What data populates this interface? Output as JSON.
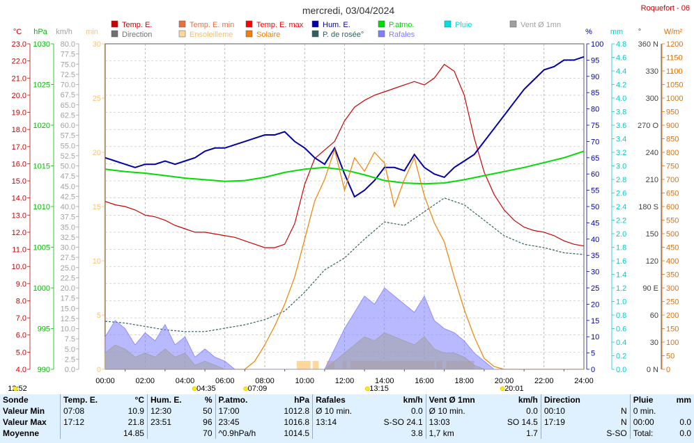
{
  "header": {
    "title": "mercredi, 03/04/2024",
    "station": "Roquefort - 06"
  },
  "colors": {
    "temp": "#cc0000",
    "temp_min": "#e87040",
    "temp_max": "#ff0000",
    "pluie": "#00e0e0",
    "vent": "#a0a0a0",
    "direction": "#707070",
    "ensoleillement": "#ffd79a",
    "solaire": "#f08000",
    "rosee": "#306060",
    "rafales": "#8080ff",
    "humidite": "#0000aa",
    "patmo": "#00dd00"
  },
  "legend": [
    {
      "label": "Temp. E.",
      "color": "#cc0000",
      "icon": "square"
    },
    {
      "label": "Temp. E. min",
      "color": "#e87040",
      "icon": "square"
    },
    {
      "label": "Temp. E. max",
      "color": "#ff0000",
      "icon": "square"
    },
    {
      "label": "Hum. E.",
      "color": "#0000aa",
      "icon": "square"
    },
    {
      "label": "P.atmo.",
      "color": "#00dd00",
      "icon": "square"
    },
    {
      "label": "Pluie",
      "color": "#00e0e0",
      "icon": "square"
    },
    {
      "label": "Vent Ø 1mn",
      "color": "#a0a0a0",
      "icon": "square"
    },
    {
      "label": "Direction",
      "color": "#707070",
      "icon": "square"
    },
    {
      "label": "Ensoleilleme",
      "color": "#ffd79a",
      "icon": "square"
    },
    {
      "label": "Solaire",
      "color": "#f08000",
      "icon": "square"
    },
    {
      "label": "P. de rosée°",
      "color": "#306060",
      "icon": "square"
    },
    {
      "label": "Rafales",
      "color": "#8080ff",
      "icon": "square"
    }
  ],
  "chart_data": {
    "type": "line",
    "x_axis": {
      "ticks": [
        "00:00",
        "02:00",
        "04:00",
        "06:00",
        "08:00",
        "10:00",
        "12:00",
        "14:00",
        "16:00",
        "18:00",
        "20:00",
        "22:00",
        "24:00"
      ],
      "range_hours": [
        0,
        24
      ]
    },
    "axes": {
      "temp_c": {
        "unit": "°C",
        "min": 4,
        "max": 23,
        "step": 1,
        "color": "#cc0000"
      },
      "patmo_hpa": {
        "unit": "hPa",
        "min": 990,
        "max": 1030,
        "step": 5,
        "color": "#00bb00"
      },
      "wind_kmh": {
        "unit": "km/h",
        "min": 0,
        "max": 80,
        "step": 2.5,
        "color": "#a0a0a0"
      },
      "min_axis": {
        "unit": "min",
        "min": 0,
        "max": 30,
        "step": 5,
        "color": "#ffc070"
      },
      "hum_pct": {
        "unit": "%",
        "min": 0,
        "max": 100,
        "step": 5,
        "color": "#0000aa"
      },
      "rain_mm": {
        "unit": "mm",
        "min": 0,
        "max": 4.8,
        "step": 0.2,
        "color": "#00cccc"
      },
      "dir_deg": {
        "unit": "°",
        "ticks": [
          "0 N",
          "30",
          "60",
          "90 E",
          "120",
          "150",
          "180 S",
          "210",
          "240",
          "270 O",
          "300",
          "330",
          "360 N"
        ],
        "color": "#404040"
      },
      "solar_wm2": {
        "unit": "W/m²",
        "min": 0,
        "max": 1200,
        "step": 50,
        "color": "#e07000"
      }
    },
    "series": [
      {
        "name": "Temp. E.",
        "axis": "temp_c",
        "color": "#cc0000",
        "x": [
          0,
          0.5,
          1,
          1.5,
          2,
          2.5,
          3,
          3.5,
          4,
          4.5,
          5,
          5.5,
          6,
          6.5,
          7,
          7.5,
          8,
          8.5,
          9,
          9.5,
          10,
          10.5,
          11,
          11.5,
          12,
          12.5,
          13,
          13.5,
          14,
          14.5,
          15,
          15.5,
          16,
          16.5,
          17,
          17.5,
          18,
          18.5,
          19,
          19.5,
          20,
          20.5,
          21,
          21.5,
          22,
          22.5,
          23,
          23.5,
          24
        ],
        "y": [
          13.8,
          13.6,
          13.5,
          13.3,
          13.0,
          12.9,
          12.7,
          12.4,
          12.2,
          12.0,
          12.0,
          11.9,
          11.8,
          11.7,
          11.5,
          11.3,
          11.1,
          11.1,
          11.3,
          12.5,
          14.8,
          16.3,
          16.8,
          17.3,
          18.5,
          19.3,
          19.7,
          20.0,
          20.2,
          20.4,
          20.6,
          20.8,
          20.6,
          21.0,
          21.8,
          21.4,
          20.0,
          17.5,
          15.5,
          14.2,
          13.3,
          12.7,
          12.3,
          12.1,
          12.0,
          11.8,
          11.5,
          11.3,
          11.2
        ]
      },
      {
        "name": "Hum. E.",
        "axis": "hum_pct",
        "color": "#0000aa",
        "x": [
          0,
          0.5,
          1,
          1.5,
          2,
          2.5,
          3,
          3.5,
          4,
          4.5,
          5,
          5.5,
          6,
          6.5,
          7,
          7.5,
          8,
          8.5,
          9,
          9.5,
          10,
          10.5,
          11,
          11.5,
          12,
          12.5,
          13,
          13.5,
          14,
          14.5,
          15,
          15.5,
          16,
          16.5,
          17,
          17.5,
          18,
          18.5,
          19,
          19.5,
          20,
          20.5,
          21,
          21.5,
          22,
          22.5,
          23,
          23.5,
          24
        ],
        "y": [
          65,
          64,
          63,
          62,
          63,
          63,
          64,
          63,
          64,
          65,
          67,
          68,
          68,
          69,
          70,
          71,
          72,
          72,
          73,
          70,
          68,
          65,
          63,
          68,
          60,
          53,
          55,
          58,
          62,
          62,
          61,
          66,
          62,
          60,
          59,
          62,
          64,
          66,
          70,
          74,
          78,
          82,
          86,
          89,
          92,
          93,
          95,
          95,
          96
        ]
      },
      {
        "name": "P.atmo.",
        "axis": "patmo_hpa",
        "color": "#00dd00",
        "x": [
          0,
          1,
          2,
          3,
          4,
          5,
          6,
          7,
          8,
          9,
          10,
          11,
          12,
          13,
          14,
          15,
          16,
          17,
          18,
          19,
          20,
          21,
          22,
          23,
          24
        ],
        "y": [
          1014.6,
          1014.3,
          1014.1,
          1013.8,
          1013.5,
          1013.3,
          1013.1,
          1013.2,
          1013.6,
          1014.2,
          1014.6,
          1014.8,
          1014.5,
          1013.9,
          1013.2,
          1012.9,
          1012.8,
          1012.9,
          1013.3,
          1013.8,
          1014.3,
          1014.8,
          1015.4,
          1016.0,
          1016.8
        ]
      },
      {
        "name": "P. de rosée°",
        "axis": "temp_c",
        "color": "#306060",
        "dash": "3,2",
        "x": [
          0,
          1,
          2,
          3,
          4,
          5,
          6,
          7,
          8,
          9,
          10,
          11,
          12,
          13,
          14,
          15,
          16,
          17,
          18,
          19,
          20,
          21,
          22,
          23,
          24
        ],
        "y": [
          6.8,
          6.7,
          6.5,
          6.3,
          6.2,
          6.2,
          6.4,
          6.6,
          6.9,
          7.4,
          8.5,
          9.8,
          10.5,
          11.6,
          12.6,
          12.4,
          13.2,
          14.0,
          13.6,
          12.7,
          11.8,
          11.3,
          11.1,
          10.8,
          10.7
        ]
      },
      {
        "name": "Solaire",
        "axis": "solar_wm2",
        "color": "#f08000",
        "x": [
          0,
          7,
          7.5,
          8,
          8.5,
          9,
          9.5,
          10,
          10.5,
          11,
          11.5,
          12,
          12.5,
          13,
          13.5,
          14,
          14.5,
          15,
          15.5,
          16,
          16.5,
          17,
          17.5,
          18,
          18.5,
          19,
          19.5,
          20,
          24
        ],
        "y": [
          0,
          0,
          30,
          90,
          160,
          240,
          340,
          480,
          620,
          700,
          810,
          660,
          780,
          730,
          800,
          760,
          600,
          700,
          780,
          640,
          540,
          470,
          340,
          220,
          120,
          40,
          10,
          0,
          0
        ]
      },
      {
        "name": "Rafales",
        "axis": "wind_kmh",
        "color": "#8080ff",
        "x": [
          0,
          0.5,
          1,
          1.5,
          2,
          2.5,
          3,
          3.5,
          4,
          4.5,
          5,
          5.5,
          6,
          6.5,
          7,
          7.5,
          8,
          8.5,
          9,
          9.5,
          10,
          10.5,
          11,
          11.5,
          12,
          12.5,
          13,
          13.5,
          14,
          14.5,
          15,
          15.5,
          16,
          16.5,
          17,
          17.5,
          18,
          18.5,
          19,
          19.5,
          20,
          24
        ],
        "y": [
          8,
          12,
          10,
          6,
          9,
          7,
          11,
          6,
          8,
          3,
          5,
          3,
          2,
          0,
          0,
          0,
          0,
          0,
          0,
          0,
          0,
          0,
          0,
          5,
          10,
          14,
          18,
          16,
          20,
          18,
          16,
          14,
          18,
          12,
          10,
          9,
          7,
          4,
          2,
          0,
          0,
          0
        ]
      },
      {
        "name": "Vent Ø 1mn",
        "axis": "wind_kmh",
        "color": "#a0a0a0",
        "x": [
          0,
          0.5,
          1,
          1.5,
          2,
          2.5,
          3,
          3.5,
          4,
          4.5,
          5,
          5.5,
          6,
          6.5,
          7,
          7.5,
          8,
          8.5,
          9,
          9.5,
          10,
          10.5,
          11,
          11.5,
          12,
          12.5,
          13,
          13.5,
          14,
          14.5,
          15,
          15.5,
          16,
          16.5,
          17,
          17.5,
          18,
          18.5,
          19,
          19.5,
          20,
          24
        ],
        "y": [
          4,
          6,
          5,
          3,
          4,
          3,
          5,
          3,
          4,
          1,
          2,
          1,
          0,
          0,
          0,
          0,
          0,
          0,
          0,
          0,
          0,
          0,
          0,
          2,
          4,
          6,
          8,
          7,
          9,
          8,
          7,
          6,
          8,
          5,
          4,
          4,
          3,
          1,
          0,
          0,
          0,
          0
        ]
      }
    ],
    "ensoleillement_periods": [
      [
        9.6,
        10.3
      ],
      [
        10.4,
        10.7
      ],
      [
        11.1,
        11.5
      ],
      [
        11.9,
        12.1
      ],
      [
        12.3,
        16.5
      ],
      [
        16.6,
        16.9
      ],
      [
        17.1,
        18.5
      ]
    ],
    "time_markers": [
      {
        "label": "12:52",
        "x_h": -0.1
      },
      {
        "label": "04:35",
        "x_h": 4.58
      },
      {
        "label": "07:09",
        "x_h": 7.15
      },
      {
        "label": "13:15",
        "x_h": 13.25
      },
      {
        "label": "20:01",
        "x_h": 20.02
      }
    ]
  },
  "summary": {
    "rows": [
      [
        "Sonde",
        "Temp. E.",
        "°C",
        "Hum. E.",
        "%",
        "P.atmo.",
        "hPa",
        "Rafales",
        "km/h",
        "Vent Ø 1mn",
        "km/h",
        "Direction",
        "",
        "Pluie",
        "mm"
      ],
      [
        "Valeur Min",
        "07:08",
        "10.9",
        "12:30",
        "50",
        "17:00",
        "1012.8",
        "Ø 10 min.",
        "0.0",
        "Ø 10 min.",
        "0.0",
        "00:10",
        "N",
        "0 min.",
        ""
      ],
      [
        "Valeur Max",
        "17:12",
        "21.8",
        "23:51",
        "96",
        "23:45",
        "1016.8",
        "13:14",
        "S-SO 24.1",
        "13:03",
        "SO 14.5",
        "17:19",
        "N",
        "00:00",
        "0.0"
      ],
      [
        "Moyenne",
        "",
        "14.85",
        "",
        "70",
        "^0.9hPa/h",
        "1014.5",
        "",
        "3.8",
        "1,7 km",
        "1.7",
        "",
        "S-SO",
        "Total:",
        "0.0"
      ]
    ]
  }
}
